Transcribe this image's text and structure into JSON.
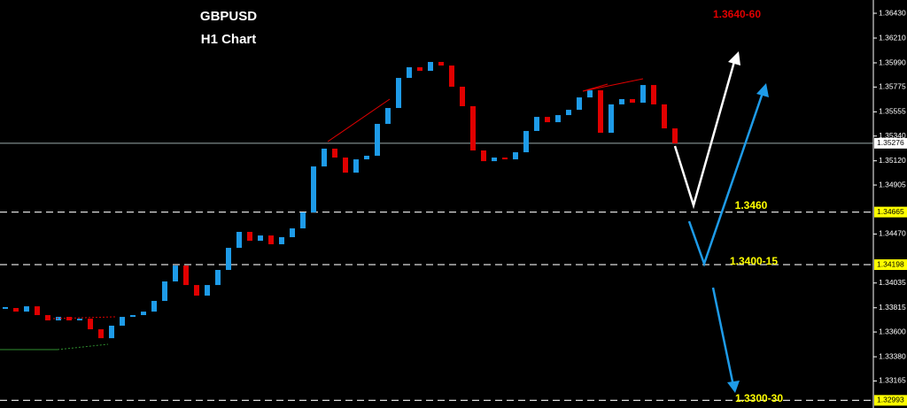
{
  "chart_data": {
    "type": "candlestick",
    "title": "GBPUSD",
    "subtitle": "H1 Chart",
    "annotations": [
      "1.3640-60",
      "1.3460",
      "1.3400-15",
      "1.3300-30"
    ],
    "series": [
      {
        "name": "GBPUSD",
        "up_color": "#1e9be8",
        "down_color": "#e00000",
        "values": [
          1.33813,
          1.33781,
          1.33828,
          1.3375,
          1.33703,
          1.33734,
          1.33703,
          1.33718,
          1.33624,
          1.33545,
          1.33656,
          1.33734,
          1.3375,
          1.33781,
          1.33876,
          1.34049,
          1.3419,
          1.34017,
          1.33923,
          1.34017,
          1.34151,
          1.34347,
          1.34489,
          1.3441,
          1.34457,
          1.34379,
          1.34442,
          1.3452,
          1.34662,
          1.3507,
          1.35228,
          1.35149,
          1.35015,
          1.35133,
          1.35165,
          1.35448,
          1.35589,
          1.35856,
          1.35951,
          1.35919,
          1.35998,
          1.35966,
          1.35778,
          1.35605,
          1.35212,
          1.35117,
          1.35149,
          1.35133,
          1.35196,
          1.35385,
          1.3551,
          1.35463,
          1.35526,
          1.35573,
          1.35683,
          1.35746,
          1.35369,
          1.35621,
          1.35668,
          1.35636,
          1.35793,
          1.35621,
          1.35408,
          1.35275
        ]
      }
    ],
    "ylim": [
      1.32925,
      1.36548
    ],
    "yticks": [
      {
        "value": 1.3643,
        "label": "1.36430"
      },
      {
        "value": 1.3621,
        "label": "1.36210"
      },
      {
        "value": 1.3599,
        "label": "1.35990"
      },
      {
        "value": 1.35775,
        "label": "1.35775"
      },
      {
        "value": 1.35555,
        "label": "1.35555"
      },
      {
        "value": 1.3534,
        "label": "1.35340"
      },
      {
        "value": 1.3512,
        "label": "1.35120"
      },
      {
        "value": 1.34905,
        "label": "1.34905"
      },
      {
        "value": 1.3447,
        "label": "1.34470"
      },
      {
        "value": 1.34035,
        "label": "1.34035"
      },
      {
        "value": 1.33815,
        "label": "1.33815"
      },
      {
        "value": 1.336,
        "label": "1.33600"
      },
      {
        "value": 1.3338,
        "label": "1.33380"
      },
      {
        "value": 1.33165,
        "label": "1.33165"
      }
    ],
    "current_price": {
      "value": 1.35276,
      "label": "1.35276"
    },
    "levels": [
      {
        "value": 1.34665,
        "label": "1.34665"
      },
      {
        "value": 1.34198,
        "label": "1.34198"
      },
      {
        "value": 1.32993,
        "label": "1.32993"
      }
    ]
  }
}
